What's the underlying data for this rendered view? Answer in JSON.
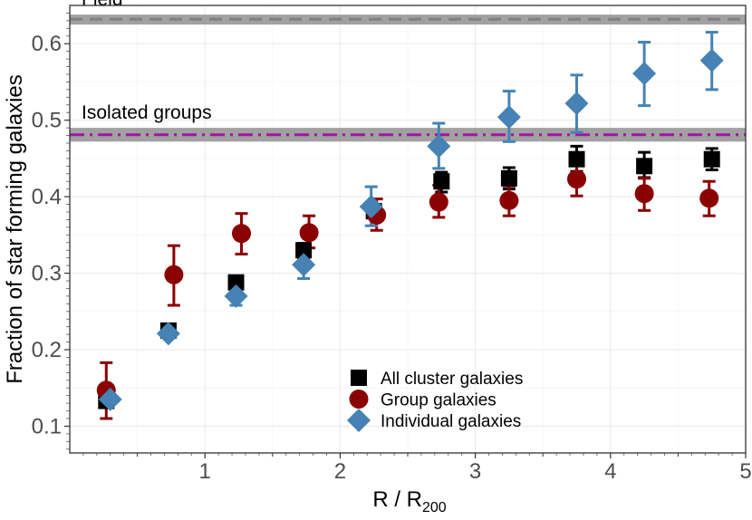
{
  "chart_data": {
    "type": "scatter",
    "xlabel": "R / R",
    "xlabel_sub": "200",
    "ylabel": "Fraction of star forming galaxies",
    "xlim": [
      0,
      5
    ],
    "ylim": [
      0.065,
      0.65
    ],
    "x_ticks": [
      1,
      2,
      3,
      4,
      5
    ],
    "x_tick_labels": [
      "1",
      "2",
      "3",
      "4",
      "5"
    ],
    "y_ticks": [
      0.1,
      0.2,
      0.3,
      0.4,
      0.5,
      0.6
    ],
    "y_tick_labels": [
      "0.1",
      "0.2",
      "0.3",
      "0.4",
      "0.5",
      "0.6"
    ],
    "grid": true,
    "legend_position": "bottom-center",
    "reference_lines": [
      {
        "label": "Field",
        "value": 0.632,
        "band": [
          0.625,
          0.638
        ],
        "color": "#808080",
        "style": "dashed"
      },
      {
        "label": "Isolated groups",
        "value": 0.481,
        "band": [
          0.472,
          0.49
        ],
        "color": "#a0179f",
        "style": "dashdot"
      }
    ],
    "series": [
      {
        "name": "All cluster galaxies",
        "marker": "square",
        "color": "#000000",
        "x": [
          0.27,
          0.73,
          1.23,
          1.73,
          2.25,
          2.75,
          3.25,
          3.75,
          4.25,
          4.75
        ],
        "y": [
          0.133,
          0.225,
          0.288,
          0.33,
          0.381,
          0.42,
          0.424,
          0.449,
          0.44,
          0.449
        ],
        "err_low": [
          0.13,
          0.219,
          0.281,
          0.32,
          0.373,
          0.406,
          0.41,
          0.433,
          0.425,
          0.435
        ],
        "err_high": [
          0.137,
          0.23,
          0.294,
          0.339,
          0.39,
          0.432,
          0.438,
          0.466,
          0.458,
          0.463
        ]
      },
      {
        "name": "Group galaxies",
        "marker": "circle",
        "color": "#8b0000",
        "x": [
          0.27,
          0.77,
          1.27,
          1.77,
          2.27,
          2.73,
          3.25,
          3.75,
          4.25,
          4.73
        ],
        "y": [
          0.147,
          0.298,
          0.352,
          0.353,
          0.376,
          0.393,
          0.395,
          0.423,
          0.404,
          0.398
        ],
        "err_low": [
          0.11,
          0.258,
          0.325,
          0.333,
          0.356,
          0.373,
          0.375,
          0.401,
          0.382,
          0.375
        ],
        "err_high": [
          0.183,
          0.336,
          0.378,
          0.375,
          0.397,
          0.415,
          0.414,
          0.443,
          0.424,
          0.42
        ]
      },
      {
        "name": "Individual galaxies",
        "marker": "diamond",
        "color": "#4682b4",
        "x": [
          0.3,
          0.73,
          1.23,
          1.73,
          2.23,
          2.73,
          3.25,
          3.75,
          4.25,
          4.75
        ],
        "y": [
          0.135,
          0.221,
          0.27,
          0.311,
          0.387,
          0.466,
          0.504,
          0.522,
          0.561,
          0.578
        ],
        "err_low": [
          0.132,
          0.216,
          0.258,
          0.293,
          0.362,
          0.437,
          0.472,
          0.484,
          0.519,
          0.54
        ],
        "err_high": [
          0.14,
          0.226,
          0.28,
          0.33,
          0.413,
          0.496,
          0.538,
          0.559,
          0.602,
          0.615
        ]
      }
    ]
  }
}
